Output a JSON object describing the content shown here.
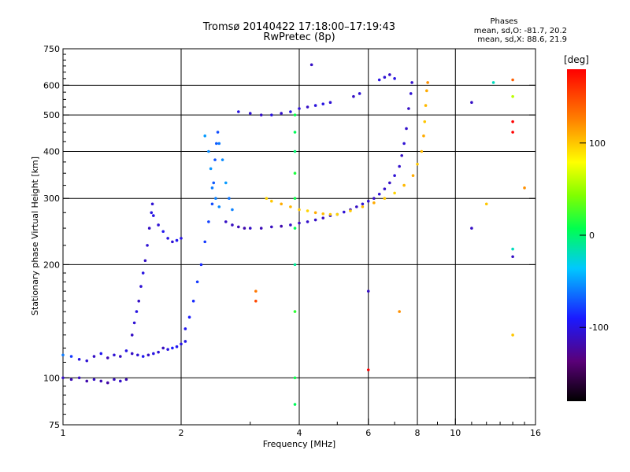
{
  "title": "Tromsø 20140422 17:18:00–17:19:43",
  "subtitle": "RwPretec (8p)",
  "phases": {
    "title": "Phases",
    "o_stats": "mean, sd,O: -81.7, 20.2",
    "x_stats": "mean, sd,X:  88.6, 21.9"
  },
  "colorbar": {
    "label": "[deg]",
    "ticks": [
      {
        "value": 100,
        "label": "100"
      },
      {
        "value": 0,
        "label": "0"
      },
      {
        "value": -100,
        "label": "-100"
      }
    ],
    "range": [
      -180,
      180
    ]
  },
  "chart_data": {
    "type": "scatter",
    "xlabel": "Frequency [MHz]",
    "ylabel": "Stationary phase Virtual Height [km]",
    "xscale": "log",
    "yscale": "log",
    "xlim": [
      1,
      16
    ],
    "ylim": [
      75,
      750
    ],
    "xticks": [
      1,
      2,
      4,
      6,
      8,
      10,
      16
    ],
    "yticks": [
      75,
      100,
      200,
      300,
      400,
      500,
      600,
      750
    ],
    "grid_x": [
      2,
      4,
      6,
      8,
      10
    ],
    "grid_y": [
      100,
      200,
      300,
      400,
      500,
      600
    ],
    "series": [
      {
        "points": [
          [
            1.0,
            100,
            -110
          ],
          [
            1.05,
            99,
            -115
          ],
          [
            1.1,
            100,
            -112
          ],
          [
            1.15,
            98,
            -118
          ],
          [
            1.2,
            99,
            -110
          ],
          [
            1.25,
            98,
            -115
          ],
          [
            1.3,
            97,
            -120
          ],
          [
            1.35,
            99,
            -112
          ],
          [
            1.4,
            98,
            -108
          ],
          [
            1.45,
            99,
            -115
          ],
          [
            1.0,
            115,
            -60
          ],
          [
            1.05,
            114,
            -80
          ],
          [
            1.1,
            112,
            -100
          ],
          [
            1.15,
            111,
            -105
          ],
          [
            1.2,
            114,
            -110
          ],
          [
            1.25,
            116,
            -95
          ],
          [
            1.3,
            113,
            -115
          ],
          [
            1.35,
            115,
            -105
          ],
          [
            1.4,
            114,
            -110
          ],
          [
            1.45,
            118,
            -100
          ],
          [
            1.5,
            116,
            -110
          ],
          [
            1.55,
            115,
            -105
          ],
          [
            1.6,
            114,
            -95
          ],
          [
            1.65,
            115,
            -110
          ],
          [
            1.7,
            116,
            -100
          ],
          [
            1.75,
            117,
            -105
          ],
          [
            1.8,
            120,
            -112
          ],
          [
            1.85,
            119,
            -100
          ],
          [
            1.9,
            120,
            -90
          ],
          [
            1.95,
            121,
            -95
          ],
          [
            2.0,
            123,
            -100
          ],
          [
            2.05,
            125,
            -98
          ],
          [
            1.5,
            130,
            -110
          ],
          [
            1.52,
            140,
            -105
          ],
          [
            1.54,
            150,
            -100
          ],
          [
            1.56,
            160,
            -110
          ],
          [
            1.58,
            175,
            -105
          ],
          [
            1.6,
            190,
            -100
          ],
          [
            1.62,
            205,
            -110
          ],
          [
            1.64,
            225,
            -105
          ],
          [
            1.66,
            250,
            -110
          ],
          [
            1.68,
            275,
            -100
          ],
          [
            1.69,
            290,
            -105
          ],
          [
            1.7,
            270,
            -100
          ],
          [
            1.75,
            255,
            -105
          ],
          [
            1.8,
            245,
            -95
          ],
          [
            1.85,
            235,
            -100
          ],
          [
            1.9,
            230,
            -105
          ],
          [
            1.95,
            232,
            -95
          ],
          [
            2.0,
            235,
            -100
          ],
          [
            2.05,
            135,
            -95
          ],
          [
            2.1,
            145,
            -90
          ],
          [
            2.15,
            160,
            -85
          ],
          [
            2.2,
            180,
            -80
          ],
          [
            2.25,
            200,
            -85
          ],
          [
            2.3,
            230,
            -80
          ],
          [
            2.35,
            260,
            -78
          ],
          [
            2.4,
            290,
            -75
          ],
          [
            2.42,
            330,
            -70
          ],
          [
            2.44,
            380,
            -72
          ],
          [
            2.46,
            420,
            -70
          ],
          [
            2.48,
            450,
            -74
          ],
          [
            2.5,
            420,
            -60
          ],
          [
            2.55,
            380,
            -55
          ],
          [
            2.6,
            330,
            -50
          ],
          [
            2.65,
            300,
            -62
          ],
          [
            2.7,
            280,
            -58
          ],
          [
            2.3,
            440,
            -50
          ],
          [
            2.35,
            400,
            -55
          ],
          [
            2.38,
            360,
            -52
          ],
          [
            2.4,
            320,
            -60
          ],
          [
            2.45,
            300,
            -58
          ],
          [
            2.5,
            285,
            -56
          ],
          [
            2.6,
            260,
            -110
          ],
          [
            2.7,
            255,
            -112
          ],
          [
            2.8,
            252,
            -115
          ],
          [
            2.9,
            250,
            -118
          ],
          [
            3.0,
            250,
            -110
          ],
          [
            3.2,
            250,
            -115
          ],
          [
            3.4,
            252,
            -112
          ],
          [
            3.6,
            253,
            -118
          ],
          [
            3.8,
            255,
            -110
          ],
          [
            4.0,
            258,
            -112
          ],
          [
            4.2,
            260,
            -108
          ],
          [
            4.4,
            263,
            -110
          ],
          [
            4.6,
            266,
            -112
          ],
          [
            4.8,
            270,
            -108
          ],
          [
            5.0,
            272,
            -110
          ],
          [
            5.2,
            276,
            -105
          ],
          [
            5.4,
            280,
            -108
          ],
          [
            5.6,
            285,
            -110
          ],
          [
            5.8,
            290,
            -105
          ],
          [
            6.0,
            295,
            -108
          ],
          [
            6.2,
            300,
            -110
          ],
          [
            6.4,
            308,
            -105
          ],
          [
            6.6,
            318,
            -108
          ],
          [
            6.8,
            330,
            -110
          ],
          [
            7.0,
            345,
            -105
          ],
          [
            7.2,
            365,
            -108
          ],
          [
            7.3,
            390,
            -110
          ],
          [
            7.4,
            420,
            -105
          ],
          [
            7.5,
            460,
            -108
          ],
          [
            7.6,
            520,
            -110
          ],
          [
            7.7,
            570,
            -105
          ],
          [
            7.75,
            610,
            -108
          ],
          [
            3.3,
            300,
            95
          ],
          [
            3.4,
            295,
            100
          ],
          [
            3.6,
            290,
            110
          ],
          [
            3.8,
            285,
            105
          ],
          [
            4.0,
            280,
            100
          ],
          [
            4.2,
            278,
            95
          ],
          [
            4.4,
            275,
            110
          ],
          [
            4.6,
            273,
            105
          ],
          [
            4.8,
            272,
            100
          ],
          [
            5.0,
            272,
            95
          ],
          [
            5.4,
            278,
            100
          ],
          [
            5.8,
            285,
            105
          ],
          [
            6.2,
            292,
            110
          ],
          [
            6.6,
            300,
            100
          ],
          [
            7.0,
            310,
            95
          ],
          [
            7.4,
            325,
            105
          ],
          [
            7.8,
            345,
            110
          ],
          [
            8.0,
            370,
            100
          ],
          [
            8.2,
            400,
            105
          ],
          [
            8.3,
            440,
            110
          ],
          [
            8.35,
            480,
            100
          ],
          [
            8.4,
            530,
            105
          ],
          [
            8.45,
            580,
            110
          ],
          [
            8.5,
            610,
            120
          ],
          [
            2.8,
            510,
            -100
          ],
          [
            3.0,
            505,
            -105
          ],
          [
            3.2,
            500,
            -110
          ],
          [
            3.4,
            500,
            -102
          ],
          [
            3.6,
            505,
            -108
          ],
          [
            3.8,
            510,
            -100
          ],
          [
            4.0,
            520,
            -105
          ],
          [
            4.2,
            525,
            -110
          ],
          [
            4.4,
            530,
            -102
          ],
          [
            4.6,
            535,
            -100
          ],
          [
            4.8,
            540,
            -105
          ],
          [
            5.5,
            560,
            -110
          ],
          [
            5.7,
            570,
            -105
          ],
          [
            6.4,
            620,
            -100
          ],
          [
            6.6,
            630,
            -105
          ],
          [
            6.8,
            640,
            -110
          ],
          [
            7.0,
            625,
            -100
          ],
          [
            3.9,
            500,
            10
          ],
          [
            3.9,
            450,
            5
          ],
          [
            3.9,
            400,
            0
          ],
          [
            3.9,
            350,
            15
          ],
          [
            3.9,
            300,
            10
          ],
          [
            3.9,
            250,
            5
          ],
          [
            3.9,
            200,
            -10
          ],
          [
            3.9,
            150,
            20
          ],
          [
            3.9,
            100,
            10
          ],
          [
            3.9,
            85,
            5
          ],
          [
            4.3,
            680,
            -110
          ],
          [
            3.1,
            160,
            150
          ],
          [
            3.1,
            170,
            130
          ],
          [
            6.0,
            105,
            200
          ],
          [
            6.0,
            170,
            -110
          ],
          [
            7.2,
            150,
            120
          ],
          [
            11,
            540,
            -110
          ],
          [
            11,
            250,
            -110
          ],
          [
            14.0,
            620,
            140
          ],
          [
            14.0,
            560,
            60
          ],
          [
            14.0,
            480,
            200
          ],
          [
            14.0,
            450,
            210
          ],
          [
            14.0,
            220,
            -20
          ],
          [
            14.0,
            210,
            -110
          ],
          [
            14.0,
            130,
            100
          ],
          [
            15,
            320,
            120
          ],
          [
            12,
            290,
            100
          ],
          [
            12.5,
            610,
            -20
          ]
        ]
      }
    ]
  }
}
